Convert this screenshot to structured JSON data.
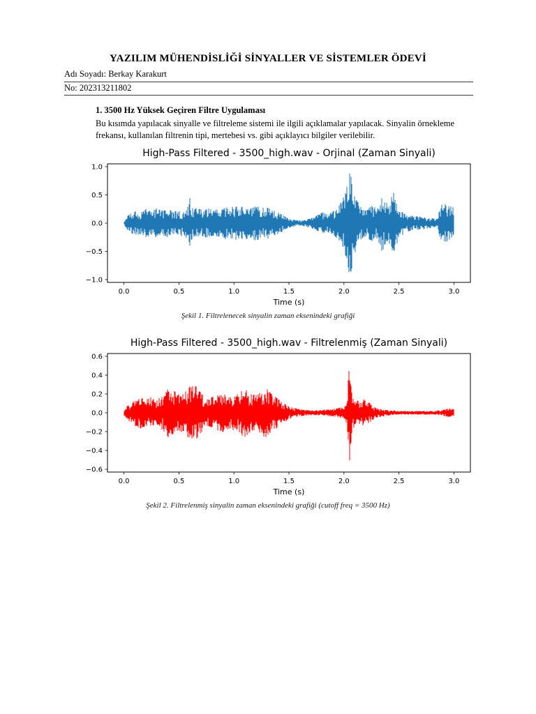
{
  "doc": {
    "title": "YAZILIM MÜHENDİSLİĞİ SİNYALLER VE SİSTEMLER ÖDEVİ",
    "student_name_line": "Adı Soyadı: Berkay Karakurt",
    "student_no_line": "No: 202313211802",
    "section_heading": "1. 3500 Hz Yüksek Geçiren Filtre Uygulaması",
    "paragraph": "Bu kısımda yapılacak sinyalle ve filtreleme sistemi ile ilgili açıklamalar yapılacak. Sinyalin örnekleme frekansı, kullanılan filtrenin tipi, mertebesi vs. gibi açıklayıcı bilgiler verilebilir.",
    "figure1_caption": "Şekil 1. Filtrelenecek sinyalin zaman eksenindeki grafiği",
    "figure2_caption": "Şekil 2. Filtrelenmiş sinyalin zaman eksenindeki grafiği (cutoff freq = 3500 Hz)"
  },
  "chart_data": [
    {
      "type": "line",
      "title": "High-Pass Filtered - 3500_high.wav - Orjinal (Zaman Sinyali)",
      "xlabel": "Time (s)",
      "ylabel": "",
      "series_name": "original time-domain audio waveform",
      "series_color": "#1f77b4",
      "grid": false,
      "legend": false,
      "xlim": [
        -0.15,
        3.15
      ],
      "ylim": [
        -1.05,
        1.05
      ],
      "signal_duration_s": 3.0,
      "xticks": [
        0.0,
        0.5,
        1.0,
        1.5,
        2.0,
        2.5,
        3.0
      ],
      "xtick_labels": [
        "0.0",
        "0.5",
        "1.0",
        "1.5",
        "2.0",
        "2.5",
        "3.0"
      ],
      "yticks": [
        1.0,
        0.5,
        0.0,
        -0.5,
        -1.0
      ],
      "ytick_labels": [
        "1.0",
        "0.5",
        "0.0",
        "−0.5",
        "−1.0"
      ],
      "envelope": [
        [
          0.0,
          0.03
        ],
        [
          0.04,
          0.15
        ],
        [
          0.08,
          0.2
        ],
        [
          0.12,
          0.24
        ],
        [
          0.16,
          0.2
        ],
        [
          0.2,
          0.26
        ],
        [
          0.25,
          0.22
        ],
        [
          0.3,
          0.27
        ],
        [
          0.35,
          0.22
        ],
        [
          0.4,
          0.26
        ],
        [
          0.45,
          0.21
        ],
        [
          0.5,
          0.24
        ],
        [
          0.55,
          0.22
        ],
        [
          0.58,
          0.3
        ],
        [
          0.6,
          0.46
        ],
        [
          0.62,
          0.28
        ],
        [
          0.68,
          0.26
        ],
        [
          0.72,
          0.24
        ],
        [
          0.78,
          0.28
        ],
        [
          0.82,
          0.24
        ],
        [
          0.88,
          0.26
        ],
        [
          0.92,
          0.3
        ],
        [
          0.96,
          0.26
        ],
        [
          1.0,
          0.33
        ],
        [
          1.05,
          0.28
        ],
        [
          1.1,
          0.31
        ],
        [
          1.15,
          0.26
        ],
        [
          1.2,
          0.32
        ],
        [
          1.25,
          0.27
        ],
        [
          1.3,
          0.3
        ],
        [
          1.35,
          0.24
        ],
        [
          1.4,
          0.2
        ],
        [
          1.45,
          0.14
        ],
        [
          1.5,
          0.09
        ],
        [
          1.55,
          0.06
        ],
        [
          1.6,
          0.05
        ],
        [
          1.65,
          0.06
        ],
        [
          1.7,
          0.09
        ],
        [
          1.75,
          0.14
        ],
        [
          1.8,
          0.19
        ],
        [
          1.85,
          0.17
        ],
        [
          1.9,
          0.21
        ],
        [
          1.95,
          0.3
        ],
        [
          2.0,
          0.5
        ],
        [
          2.04,
          0.85
        ],
        [
          2.06,
          1.0
        ],
        [
          2.08,
          0.7
        ],
        [
          2.12,
          0.4
        ],
        [
          2.16,
          0.28
        ],
        [
          2.2,
          0.24
        ],
        [
          2.25,
          0.33
        ],
        [
          2.3,
          0.28
        ],
        [
          2.35,
          0.52
        ],
        [
          2.4,
          0.33
        ],
        [
          2.45,
          0.55
        ],
        [
          2.5,
          0.28
        ],
        [
          2.55,
          0.18
        ],
        [
          2.6,
          0.14
        ],
        [
          2.65,
          0.12
        ],
        [
          2.7,
          0.12
        ],
        [
          2.75,
          0.1
        ],
        [
          2.8,
          0.09
        ],
        [
          2.85,
          0.07
        ],
        [
          2.88,
          0.33
        ],
        [
          2.92,
          0.36
        ],
        [
          2.96,
          0.34
        ],
        [
          3.0,
          0.28
        ]
      ]
    },
    {
      "type": "line",
      "title": "High-Pass Filtered - 3500_high.wav - Filtrelenmiş (Zaman Sinyali)",
      "xlabel": "Time (s)",
      "ylabel": "",
      "series_name": "high-pass filtered time-domain audio waveform (cutoff 3500 Hz)",
      "series_color": "#ff0000",
      "grid": false,
      "legend": false,
      "xlim": [
        -0.15,
        3.15
      ],
      "ylim": [
        -0.63,
        0.63
      ],
      "signal_duration_s": 3.0,
      "xticks": [
        0.0,
        0.5,
        1.0,
        1.5,
        2.0,
        2.5,
        3.0
      ],
      "xtick_labels": [
        "0.0",
        "0.5",
        "1.0",
        "1.5",
        "2.0",
        "2.5",
        "3.0"
      ],
      "yticks": [
        0.6,
        0.4,
        0.2,
        0.0,
        -0.2,
        -0.4,
        -0.6
      ],
      "ytick_labels": [
        "0.6",
        "0.4",
        "0.2",
        "0.0",
        "−0.2",
        "−0.4",
        "−0.6"
      ],
      "envelope": [
        [
          0.0,
          0.03
        ],
        [
          0.05,
          0.1
        ],
        [
          0.1,
          0.14
        ],
        [
          0.15,
          0.17
        ],
        [
          0.2,
          0.14
        ],
        [
          0.25,
          0.17
        ],
        [
          0.3,
          0.14
        ],
        [
          0.35,
          0.19
        ],
        [
          0.4,
          0.26
        ],
        [
          0.45,
          0.24
        ],
        [
          0.5,
          0.2
        ],
        [
          0.55,
          0.24
        ],
        [
          0.6,
          0.28
        ],
        [
          0.65,
          0.31
        ],
        [
          0.7,
          0.22
        ],
        [
          0.75,
          0.14
        ],
        [
          0.8,
          0.17
        ],
        [
          0.85,
          0.19
        ],
        [
          0.9,
          0.21
        ],
        [
          0.95,
          0.17
        ],
        [
          1.0,
          0.19
        ],
        [
          1.05,
          0.22
        ],
        [
          1.1,
          0.27
        ],
        [
          1.15,
          0.21
        ],
        [
          1.2,
          0.19
        ],
        [
          1.25,
          0.24
        ],
        [
          1.3,
          0.27
        ],
        [
          1.35,
          0.19
        ],
        [
          1.4,
          0.17
        ],
        [
          1.45,
          0.11
        ],
        [
          1.5,
          0.07
        ],
        [
          1.55,
          0.05
        ],
        [
          1.6,
          0.04
        ],
        [
          1.65,
          0.03
        ],
        [
          1.7,
          0.03
        ],
        [
          1.75,
          0.03
        ],
        [
          1.8,
          0.03
        ],
        [
          1.85,
          0.04
        ],
        [
          1.9,
          0.04
        ],
        [
          1.95,
          0.05
        ],
        [
          2.0,
          0.07
        ],
        [
          2.03,
          0.15
        ],
        [
          2.05,
          0.57
        ],
        [
          2.07,
          0.25
        ],
        [
          2.1,
          0.12
        ],
        [
          2.15,
          0.14
        ],
        [
          2.2,
          0.14
        ],
        [
          2.25,
          0.09
        ],
        [
          2.3,
          0.05
        ],
        [
          2.35,
          0.04
        ],
        [
          2.4,
          0.03
        ],
        [
          2.5,
          0.02
        ],
        [
          2.6,
          0.02
        ],
        [
          2.7,
          0.02
        ],
        [
          2.8,
          0.02
        ],
        [
          2.9,
          0.03
        ],
        [
          2.95,
          0.05
        ],
        [
          3.0,
          0.04
        ]
      ]
    }
  ]
}
